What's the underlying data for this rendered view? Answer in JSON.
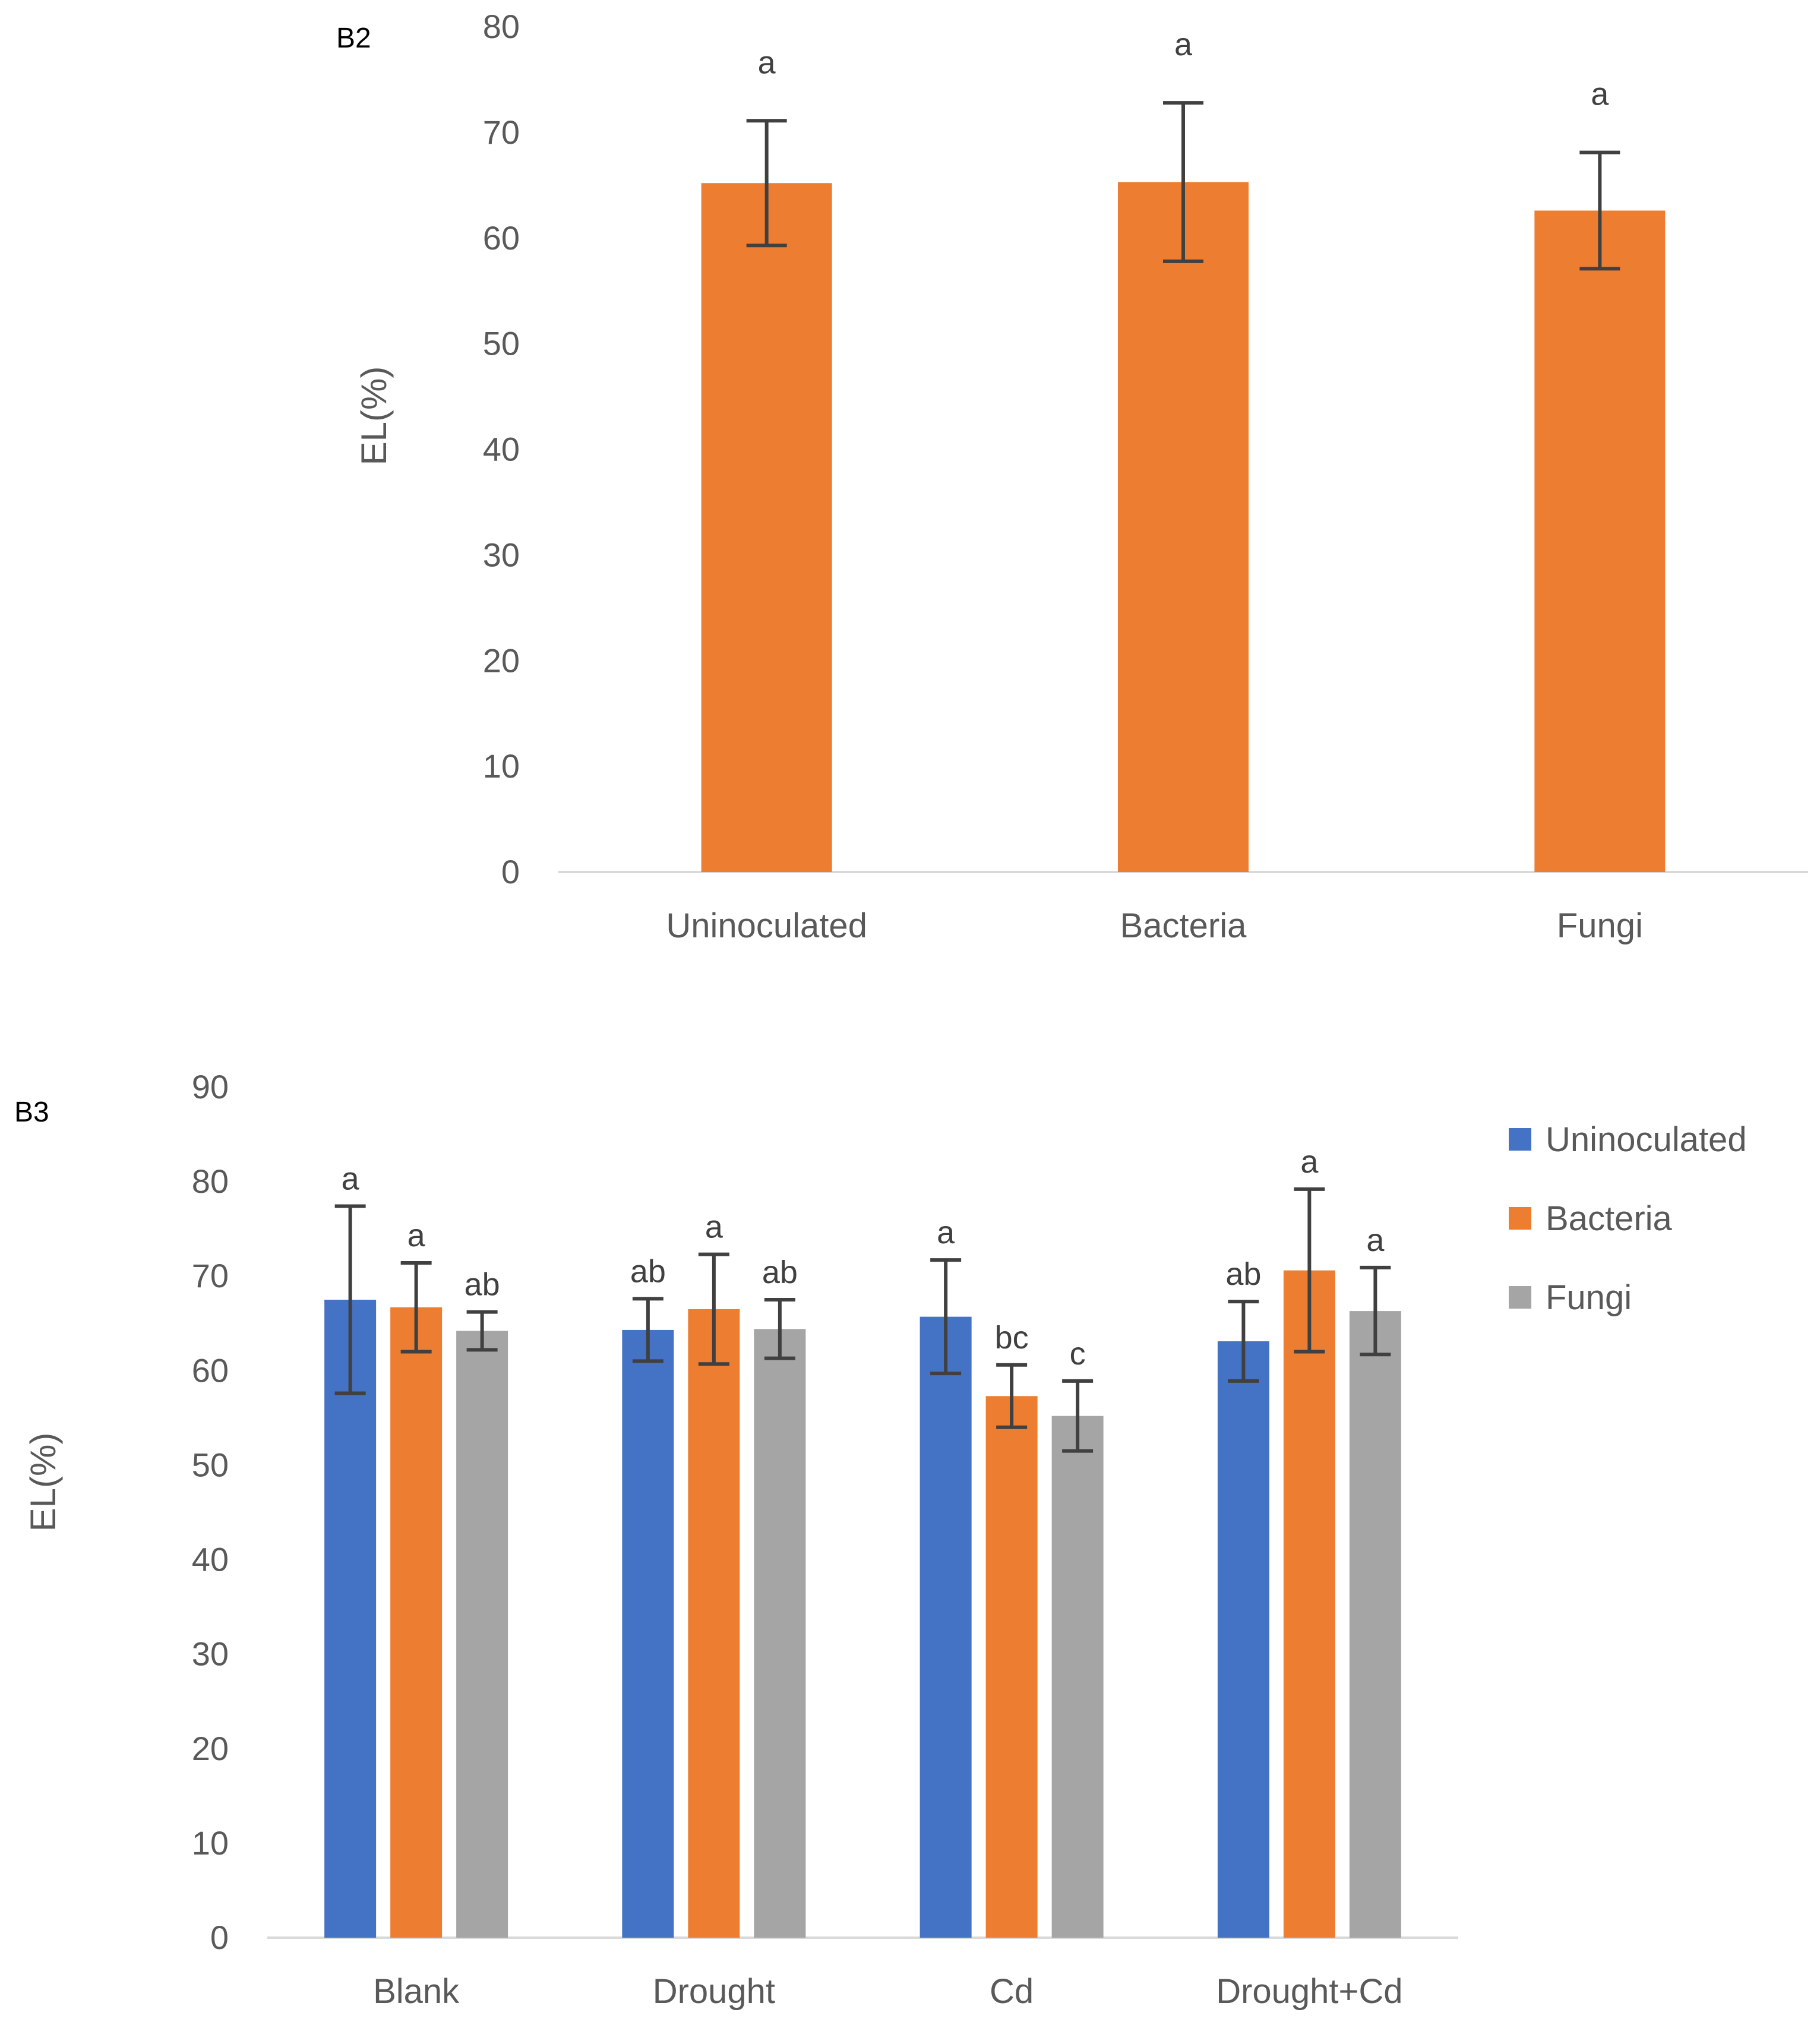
{
  "chart_data": [
    {
      "panel": "B2",
      "type": "bar",
      "ylabel": "EL(%)",
      "xlabel": "",
      "ylim": [
        0,
        80
      ],
      "yticks": [
        0,
        10,
        20,
        30,
        40,
        50,
        60,
        70,
        80
      ],
      "categories": [
        "Uninoculated",
        "Bacteria",
        "Fungi"
      ],
      "series": [
        {
          "name": "EL",
          "color": "#ED7D31",
          "values": [
            65.2,
            65.3,
            62.6
          ],
          "errors": [
            5.9,
            7.5,
            5.5
          ],
          "significance": [
            "a",
            "a",
            "a"
          ]
        }
      ],
      "grid": false,
      "legend": null
    },
    {
      "panel": "B3",
      "type": "bar",
      "ylabel": "EL(%)",
      "xlabel": "",
      "ylim": [
        0,
        90
      ],
      "yticks": [
        0,
        10,
        20,
        30,
        40,
        50,
        60,
        70,
        80,
        90
      ],
      "categories": [
        "Blank",
        "Drought",
        "Cd",
        "Drought+Cd"
      ],
      "series": [
        {
          "name": "Uninoculated",
          "color": "#4472C4",
          "values": [
            67.5,
            64.3,
            65.7,
            63.1
          ],
          "errors": [
            9.9,
            3.3,
            6.0,
            4.2
          ],
          "significance": [
            "a",
            "ab",
            "a",
            "ab"
          ]
        },
        {
          "name": "Bacteria",
          "color": "#ED7D31",
          "values": [
            66.7,
            66.5,
            57.3,
            70.6
          ],
          "errors": [
            4.7,
            5.8,
            3.3,
            8.6
          ],
          "significance": [
            "a",
            "a",
            "bc",
            "a"
          ]
        },
        {
          "name": "Fungi",
          "color": "#A5A5A5",
          "values": [
            64.2,
            64.4,
            55.2,
            66.3
          ],
          "errors": [
            2.0,
            3.1,
            3.7,
            4.6
          ],
          "significance": [
            "ab",
            "ab",
            "c",
            "a"
          ]
        }
      ],
      "grid": false,
      "legend": "right"
    }
  ]
}
